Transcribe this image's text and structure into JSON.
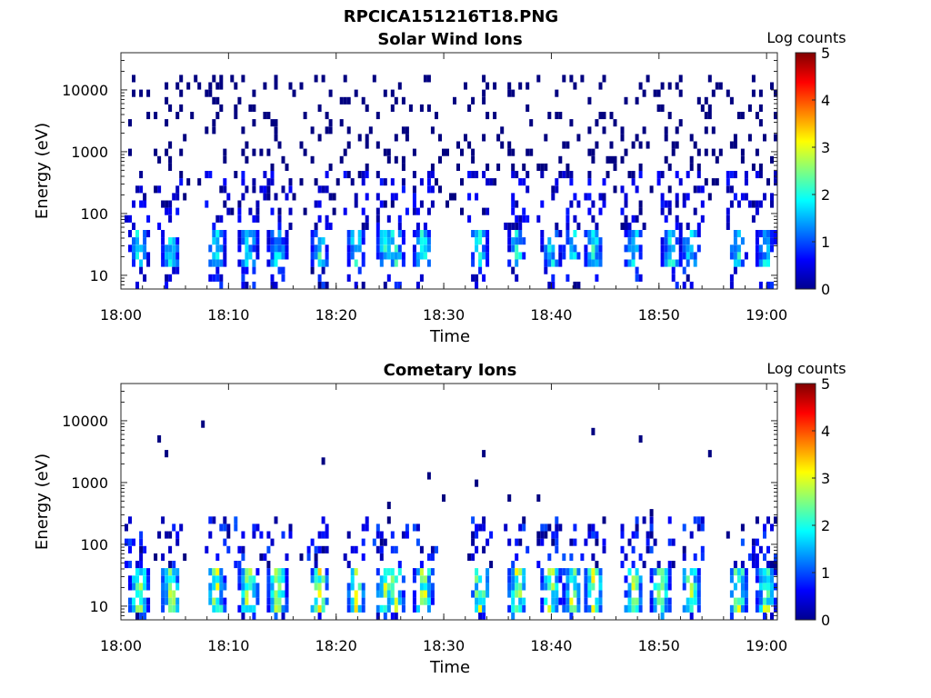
{
  "figure": {
    "title": "RPCICA151216T18.PNG"
  },
  "chart_data": [
    {
      "type": "heatmap",
      "title": "Solar Wind Ions",
      "xlabel": "Time",
      "ylabel": "Energy (eV)",
      "y_scale": "log",
      "xlim": [
        "18:00",
        "19:01"
      ],
      "ylim": [
        6,
        40000
      ],
      "x_ticks": [
        "18:00",
        "18:10",
        "18:20",
        "18:30",
        "18:40",
        "18:50",
        "19:00"
      ],
      "y_ticks": [
        "10",
        "100",
        "1000",
        "10000"
      ],
      "colorbar": {
        "label": "Log counts",
        "ticks": [
          "0",
          "1",
          "2",
          "3",
          "4",
          "5"
        ],
        "range": [
          0,
          5
        ],
        "colormap": "jet"
      },
      "bursts_minutes": [
        1.5,
        4.5,
        8.7,
        11.7,
        14.4,
        18.3,
        21.7,
        24.4,
        25.3,
        27.9,
        33.2,
        36.7,
        39.8,
        41.8,
        43.8,
        47.5,
        51.0,
        52.8,
        57.2,
        59.8
      ],
      "burst_energy_eV": [
        15,
        60
      ],
      "burst_peak_log_counts": 2.5,
      "scatter_energy_eV": [
        100,
        20000
      ],
      "scatter_log_counts": 0
    },
    {
      "type": "heatmap",
      "title": "Cometary Ions",
      "xlabel": "Time",
      "ylabel": "Energy (eV)",
      "y_scale": "log",
      "xlim": [
        "18:00",
        "19:01"
      ],
      "ylim": [
        6,
        40000
      ],
      "x_ticks": [
        "18:00",
        "18:10",
        "18:20",
        "18:30",
        "18:40",
        "18:50",
        "19:00"
      ],
      "y_ticks": [
        "10",
        "100",
        "1000",
        "10000"
      ],
      "colorbar": {
        "label": "Log counts",
        "ticks": [
          "0",
          "1",
          "2",
          "3",
          "4",
          "5"
        ],
        "range": [
          0,
          5
        ],
        "colormap": "jet"
      },
      "bursts_minutes": [
        1.5,
        4.5,
        8.7,
        11.7,
        14.4,
        18.3,
        21.7,
        24.4,
        25.3,
        28.0,
        33.2,
        36.7,
        39.8,
        41.8,
        43.8,
        47.5,
        50.0,
        52.8,
        57.2,
        59.8
      ],
      "burst_energy_eV": [
        7,
        40
      ],
      "burst_peak_log_counts": 3.5,
      "scatter_energy_eV": [
        50,
        10000
      ],
      "scatter_log_counts": 0
    }
  ]
}
